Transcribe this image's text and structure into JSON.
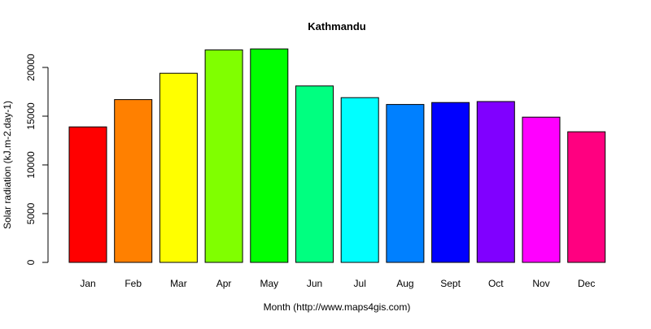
{
  "chart_data": {
    "type": "bar",
    "title": "Kathmandu",
    "xlabel": "Month (http://www.maps4gis.com)",
    "ylabel": "Solar radiation (kJ.m-2.day-1)",
    "categories": [
      "Jan",
      "Feb",
      "Mar",
      "Apr",
      "May",
      "Jun",
      "Jul",
      "Aug",
      "Sept",
      "Oct",
      "Nov",
      "Dec"
    ],
    "values": [
      13900,
      16700,
      19400,
      21800,
      21900,
      18100,
      16900,
      16200,
      16400,
      16500,
      14900,
      13400
    ],
    "colors": [
      "#FF0000",
      "#FF8000",
      "#FFFF00",
      "#80FF00",
      "#00FF00",
      "#00FF80",
      "#00FFFF",
      "#0080FF",
      "#0000FF",
      "#8000FF",
      "#FF00FF",
      "#FF0080"
    ],
    "yticks": [
      "0",
      "5000",
      "10000",
      "15000",
      "20000"
    ],
    "ylim": [
      0,
      22000
    ],
    "grid": false,
    "legend": "none"
  }
}
